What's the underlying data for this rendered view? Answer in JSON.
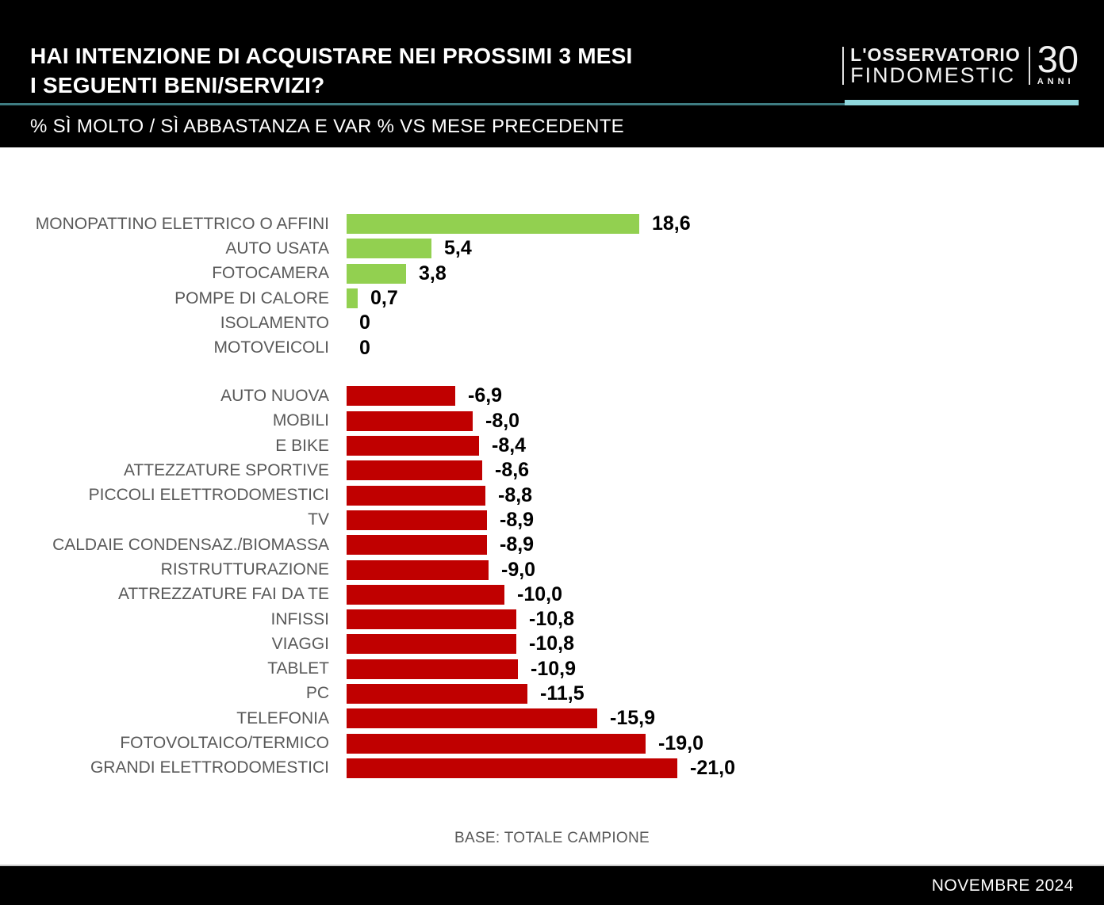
{
  "chart_data": {
    "type": "bar",
    "orientation": "horizontal",
    "title_line1": "HAI INTENZIONE DI ACQUISTARE NEI PROSSIMI 3 MESI",
    "title_line2": "I SEGUENTI BENI/SERVIZI?",
    "subtitle": "% SÌ MOLTO / SÌ ABBASTANZA E VAR % VS MESE PRECEDENTE",
    "note": "BASE: TOTALE CAMPIONE",
    "value_range": [
      -21.0,
      18.6
    ],
    "grid": false,
    "legend": false,
    "groups": [
      {
        "name": "positive",
        "color": "#92d050",
        "items": [
          {
            "label": "MONOPATTINO ELETTRICO O AFFINI",
            "value": 18.6,
            "display": "18,6"
          },
          {
            "label": "AUTO USATA",
            "value": 5.4,
            "display": "5,4"
          },
          {
            "label": "FOTOCAMERA",
            "value": 3.8,
            "display": "3,8"
          },
          {
            "label": "POMPE DI CALORE",
            "value": 0.7,
            "display": "0,7"
          },
          {
            "label": "ISOLAMENTO",
            "value": 0,
            "display": "0"
          },
          {
            "label": "MOTOVEICOLI",
            "value": 0,
            "display": "0"
          }
        ]
      },
      {
        "name": "negative",
        "color": "#c00000",
        "items": [
          {
            "label": "AUTO NUOVA",
            "value": -6.9,
            "display": "-6,9"
          },
          {
            "label": "MOBILI",
            "value": -8.0,
            "display": "-8,0"
          },
          {
            "label": "E BIKE",
            "value": -8.4,
            "display": "-8,4"
          },
          {
            "label": "ATTEZZATURE SPORTIVE",
            "value": -8.6,
            "display": "-8,6"
          },
          {
            "label": "PICCOLI ELETTRODOMESTICI",
            "value": -8.8,
            "display": "-8,8"
          },
          {
            "label": "TV",
            "value": -8.9,
            "display": "-8,9"
          },
          {
            "label": "CALDAIE CONDENSAZ./BIOMASSA",
            "value": -8.9,
            "display": "-8,9"
          },
          {
            "label": "RISTRUTTURAZIONE",
            "value": -9.0,
            "display": "-9,0"
          },
          {
            "label": "ATTREZZATURE FAI DA TE",
            "value": -10.0,
            "display": "-10,0"
          },
          {
            "label": "INFISSI",
            "value": -10.8,
            "display": "-10,8"
          },
          {
            "label": "VIAGGI",
            "value": -10.8,
            "display": "-10,8"
          },
          {
            "label": "TABLET",
            "value": -10.9,
            "display": "-10,9"
          },
          {
            "label": "PC",
            "value": -11.5,
            "display": "-11,5"
          },
          {
            "label": "TELEFONIA",
            "value": -15.9,
            "display": "-15,9"
          },
          {
            "label": "FOTOVOLTAICO/TERMICO",
            "value": -19.0,
            "display": "-19,0"
          },
          {
            "label": "GRANDI ELETTRODOMESTICI",
            "value": -21.0,
            "display": "-21,0"
          }
        ]
      }
    ]
  },
  "logo": {
    "line1": "L'OSSERVATORIO",
    "line2": "FINDOMESTIC",
    "number": "30",
    "number_label": "ANNI"
  },
  "footer": {
    "date": "NOVEMBRE 2024"
  },
  "colors": {
    "positive_bar": "#92d050",
    "negative_bar": "#c00000",
    "divider_teal": "#3e7c82",
    "divider_bright": "#90d8dd",
    "label_gray": "#595959",
    "band_black": "#000000"
  }
}
